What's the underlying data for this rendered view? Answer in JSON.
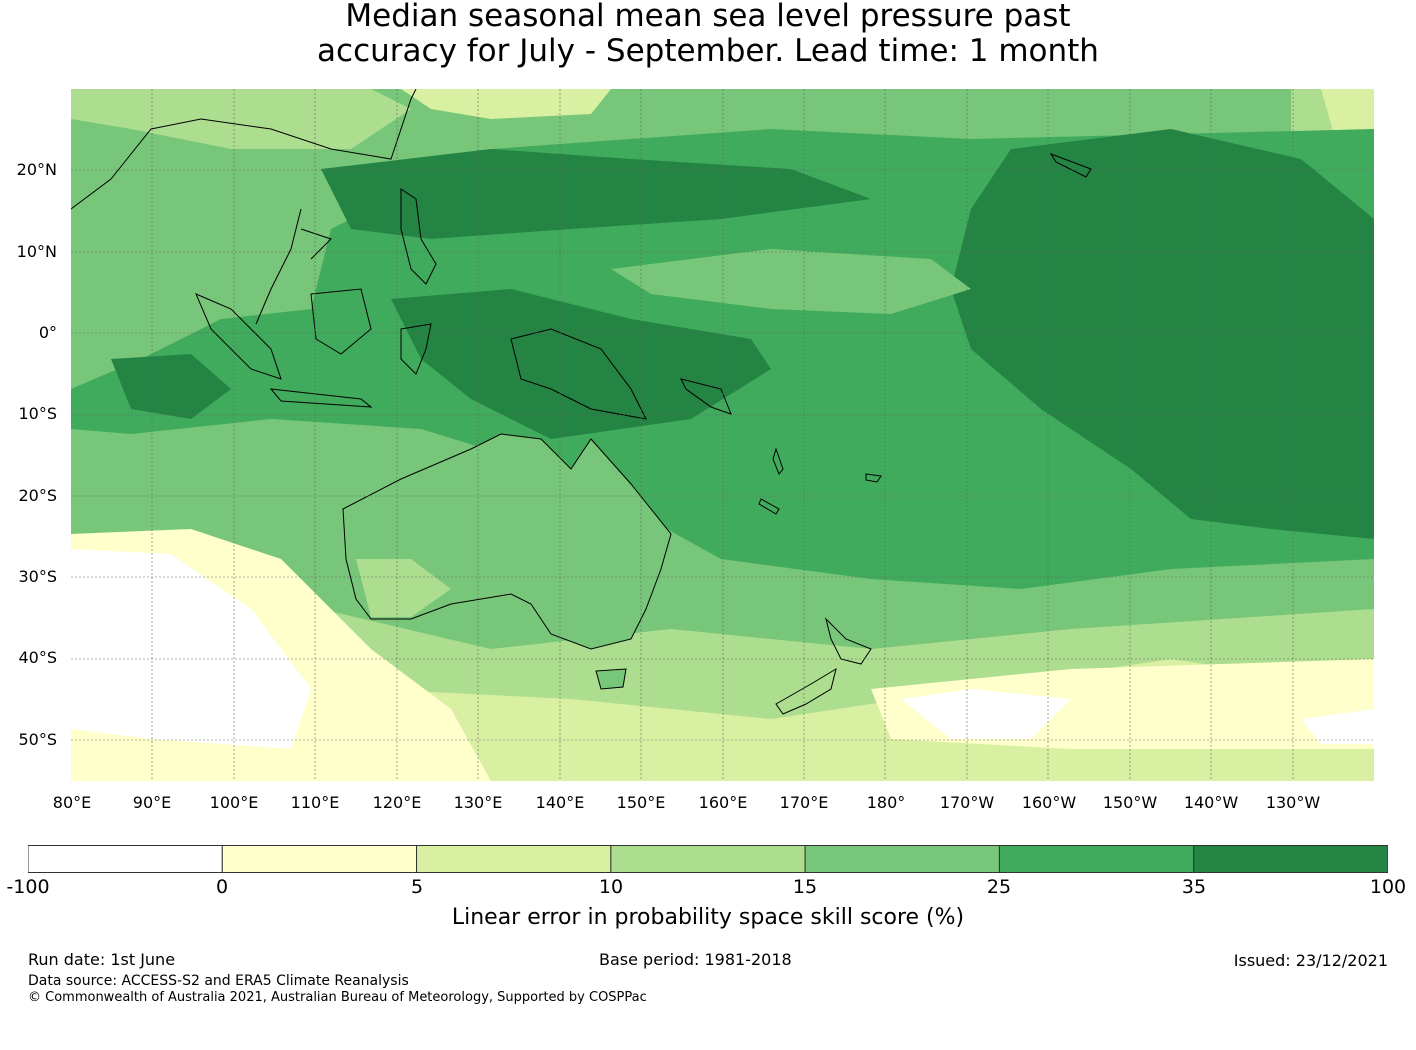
{
  "title": {
    "line1": "Median seasonal mean sea level pressure past",
    "line2": "accuracy for July - September. Lead time: 1 month"
  },
  "map": {
    "lat_labels": [
      "20°N",
      "10°N",
      "0°",
      "10°S",
      "20°S",
      "30°S",
      "40°S",
      "50°S"
    ],
    "lon_labels": [
      "80°E",
      "90°E",
      "100°E",
      "110°E",
      "120°E",
      "130°E",
      "140°E",
      "150°E",
      "160°E",
      "170°E",
      "180°",
      "170°W",
      "160°W",
      "150°W",
      "140°W",
      "130°W"
    ],
    "extent": {
      "lon_min": 80,
      "lon_max": 240,
      "lat_min": -55,
      "lat_max": 30
    }
  },
  "colorbar": {
    "ticks": [
      "-100",
      "0",
      "5",
      "10",
      "15",
      "25",
      "35",
      "100"
    ],
    "colors": [
      "#ffffff",
      "#ffffcc",
      "#d9f0a3",
      "#addd8e",
      "#78c679",
      "#41ab5d",
      "#238443"
    ],
    "label": "Linear error in probability space skill score (%)"
  },
  "footer": {
    "run_date": "Run date: 1st June",
    "base_period": "Base period: 1981-2018",
    "issued": "Issued: 23/12/2021",
    "data_source": "Data source: ACCESS-S2 and ERA5 Climate Reanalysis",
    "copyright": "© Commonwealth of Australia 2021, Australian Bureau of Meteorology, Supported by COSPPac"
  }
}
